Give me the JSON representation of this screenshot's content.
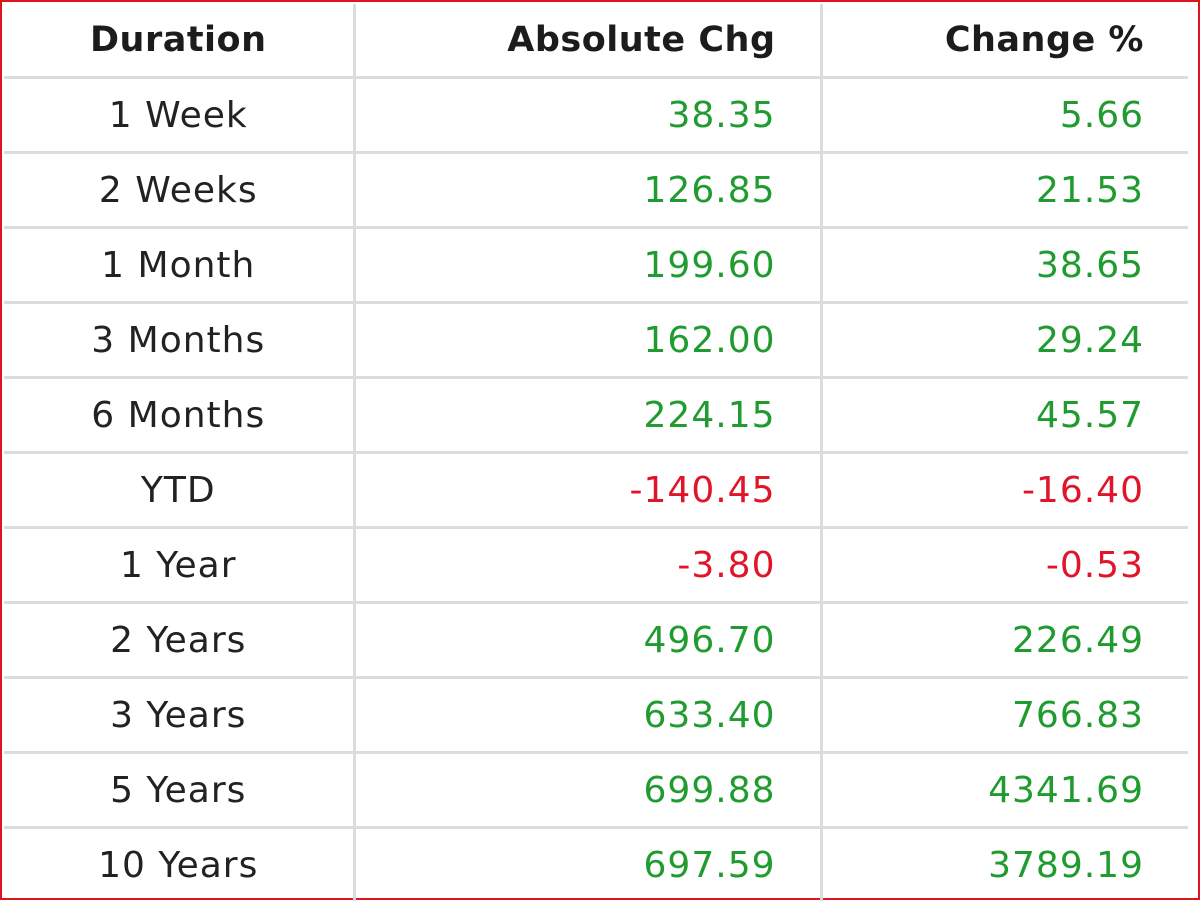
{
  "table": {
    "headers": {
      "duration": "Duration",
      "absolute": "Absolute Chg",
      "percent": "Change %"
    },
    "colors": {
      "positive": "#1f9b2f",
      "negative": "#e01529",
      "border_frame": "#e0141e",
      "grid": "#dcdcdc"
    },
    "rows": [
      {
        "duration": "1 Week",
        "absolute": "38.35",
        "percent": "5.66",
        "trend": "positive"
      },
      {
        "duration": "2 Weeks",
        "absolute": "126.85",
        "percent": "21.53",
        "trend": "positive"
      },
      {
        "duration": "1 Month",
        "absolute": "199.60",
        "percent": "38.65",
        "trend": "positive"
      },
      {
        "duration": "3 Months",
        "absolute": "162.00",
        "percent": "29.24",
        "trend": "positive"
      },
      {
        "duration": "6 Months",
        "absolute": "224.15",
        "percent": "45.57",
        "trend": "positive"
      },
      {
        "duration": "YTD",
        "absolute": "-140.45",
        "percent": "-16.40",
        "trend": "negative"
      },
      {
        "duration": "1 Year",
        "absolute": "-3.80",
        "percent": "-0.53",
        "trend": "negative"
      },
      {
        "duration": "2 Years",
        "absolute": "496.70",
        "percent": "226.49",
        "trend": "positive"
      },
      {
        "duration": "3 Years",
        "absolute": "633.40",
        "percent": "766.83",
        "trend": "positive"
      },
      {
        "duration": "5 Years",
        "absolute": "699.88",
        "percent": "4341.69",
        "trend": "positive"
      },
      {
        "duration": "10 Years",
        "absolute": "697.59",
        "percent": "3789.19",
        "trend": "positive"
      }
    ]
  }
}
